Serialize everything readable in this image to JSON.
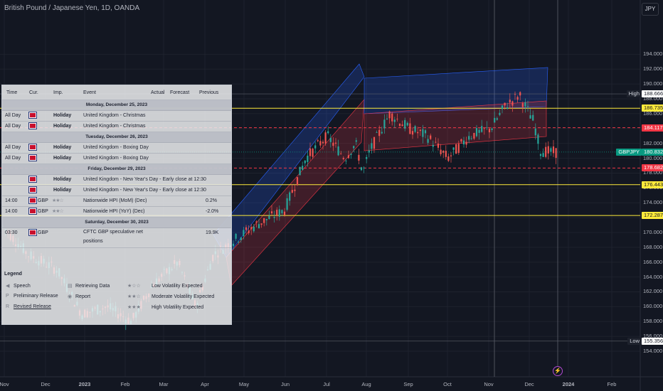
{
  "window": {
    "title": "British Pound / Japanese Yen, 1D, OANDA",
    "currency_button": "JPY"
  },
  "colors": {
    "background": "#131722",
    "bull": "#26a69a",
    "bear": "#ef5350",
    "yellow_line": "#ffeb3b",
    "dashed_red": "#f23645",
    "channel_blue": "#2962ff"
  },
  "price_axis": {
    "ticks": [
      "194.000",
      "192.000",
      "190.000",
      "188.000",
      "186.000",
      "184.000",
      "182.000",
      "180.000",
      "178.000",
      "176.000",
      "174.000",
      "172.000",
      "170.000",
      "168.000",
      "166.000",
      "164.000",
      "162.000",
      "160.000",
      "158.000",
      "156.000",
      "154.000"
    ]
  },
  "price_badges": [
    {
      "label": "High",
      "value": "188.666",
      "kind": "high"
    },
    {
      "label": "",
      "value": "186.735",
      "kind": "yellow"
    },
    {
      "label": "",
      "value": "184.117",
      "kind": "red"
    },
    {
      "label": "GBPJPY",
      "value": "180.832",
      "kind": "current"
    },
    {
      "label": "",
      "value": "178.682",
      "kind": "red"
    },
    {
      "label": "",
      "value": "176.443",
      "kind": "yellow"
    },
    {
      "label": "",
      "value": "172.287",
      "kind": "yellow"
    },
    {
      "label": "Low",
      "value": "155.356",
      "kind": "low"
    }
  ],
  "time_axis": [
    "Nov",
    "Dec",
    "2023",
    "Feb",
    "Mar",
    "Apr",
    "May",
    "Jun",
    "Jul",
    "Aug",
    "Sep",
    "Oct",
    "Nov",
    "Dec",
    "2024",
    "Feb"
  ],
  "calendar": {
    "headers": {
      "time": "Time",
      "cur": "Cur.",
      "imp": "Imp.",
      "event": "Event",
      "actual": "Actual",
      "forecast": "Forecast",
      "previous": "Previous"
    },
    "rows": [
      {
        "type": "day",
        "label": "Monday, December 25, 2023"
      },
      {
        "type": "event",
        "time": "All Day",
        "cur": "",
        "imp": "Holiday",
        "event": "United Kingdom - Christmas",
        "previous": ""
      },
      {
        "type": "event",
        "time": "All Day",
        "cur": "",
        "imp": "Holiday",
        "event": "United Kingdom - Christmas",
        "previous": ""
      },
      {
        "type": "day",
        "label": "Tuesday, December 26, 2023"
      },
      {
        "type": "event",
        "time": "All Day",
        "cur": "",
        "imp": "Holiday",
        "event": "United Kingdom - Boxing Day",
        "previous": ""
      },
      {
        "type": "event",
        "time": "All Day",
        "cur": "",
        "imp": "Holiday",
        "event": "United Kingdom - Boxing Day",
        "previous": ""
      },
      {
        "type": "day",
        "label": "Friday, December 29, 2023"
      },
      {
        "type": "event",
        "time": "",
        "cur": "",
        "imp": "Holiday",
        "event": "United Kingdom - New Year's Day - Early close at 12:30",
        "previous": ""
      },
      {
        "type": "event",
        "time": "",
        "cur": "",
        "imp": "Holiday",
        "event": "United Kingdom - New Year's Day - Early close at 12:30",
        "previous": ""
      },
      {
        "type": "event",
        "time": "14:00",
        "cur": "GBP",
        "imp": "★★☆",
        "event": "Nationwide HPI (MoM) (Dec)",
        "previous": "0.2%"
      },
      {
        "type": "event",
        "time": "14:00",
        "cur": "GBP",
        "imp": "★★☆",
        "event": "Nationwide HPI (YoY) (Dec)",
        "previous": "-2.0%"
      },
      {
        "type": "day",
        "label": "Saturday, December 30, 2023"
      },
      {
        "type": "event2",
        "time": "03:30",
        "cur": "GBP",
        "imp": "",
        "event": "CFTC GBP speculative net",
        "event2": "positions",
        "previous": "19.9K"
      }
    ],
    "legend": {
      "title": "Legend",
      "items": [
        {
          "symbol": "◀",
          "text": "Speech"
        },
        {
          "symbol": "P",
          "text": "Preliminary Release"
        },
        {
          "symbol": "R",
          "text": "Revised Release"
        },
        {
          "symbol": "▤",
          "text": "Retrieving Data"
        },
        {
          "symbol": "◉",
          "text": "Report"
        },
        {
          "symbol": "★☆☆",
          "text": "Low Volatility Expected"
        },
        {
          "symbol": "★★☆",
          "text": "Moderate Volatility Expected"
        },
        {
          "symbol": "★★★",
          "text": "High Volatility Expected"
        }
      ]
    }
  },
  "event_marker": {
    "icon": "lightning-icon",
    "glyph": "⚡"
  }
}
